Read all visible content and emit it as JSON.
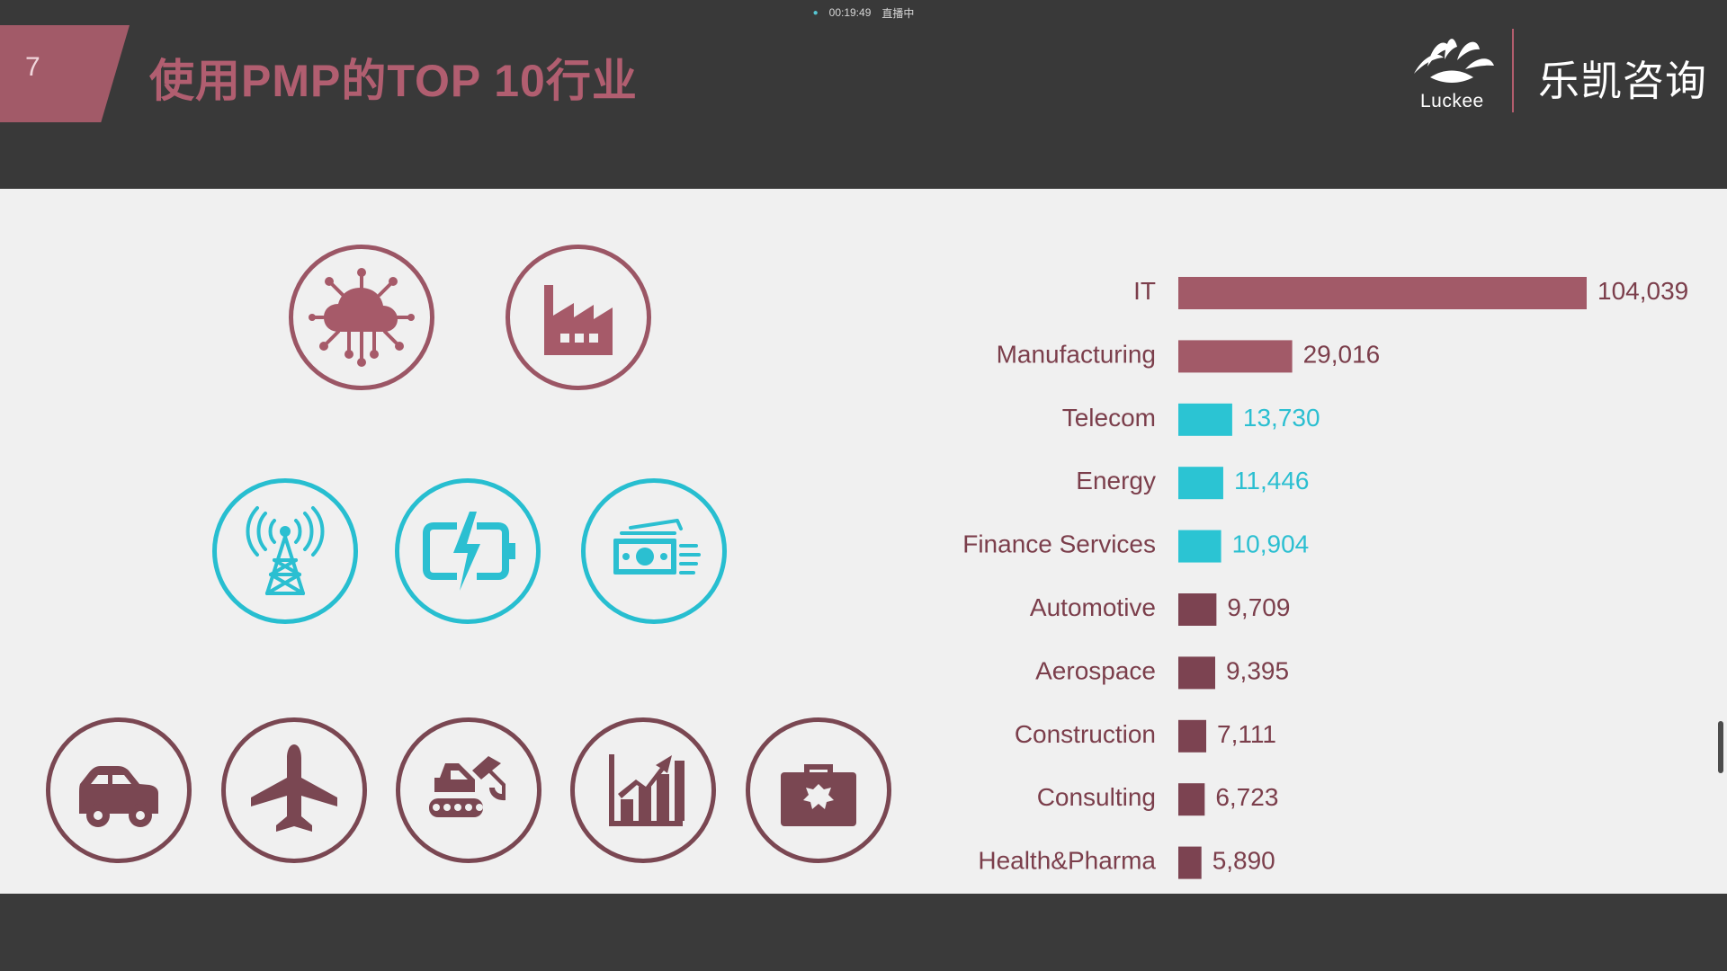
{
  "top_status": {
    "time": "00:19:49",
    "status": "直播中"
  },
  "slide": {
    "number": "7",
    "title": "使用PMP的TOP 10行业"
  },
  "brand": {
    "name": "乐凯咨询",
    "sub": "Luckee"
  },
  "colors": {
    "accent_rose": "#a65a69",
    "accent_cyan": "#2bbfd1",
    "dark_rose": "#7a4752",
    "bar_rose": "#a25a68",
    "bar_cyan": "#2bc4d3",
    "bar_dark": "#7c4351"
  },
  "icons": {
    "row1": [
      "cloud-network-icon",
      "factory-icon"
    ],
    "row2": [
      "radio-tower-icon",
      "battery-charging-icon",
      "money-icon"
    ],
    "row3": [
      "car-icon",
      "airplane-icon",
      "excavator-icon",
      "growth-chart-icon",
      "medical-kit-icon"
    ]
  },
  "chart_data": {
    "type": "bar",
    "orientation": "horizontal",
    "categories": [
      "IT",
      "Manufacturing",
      "Telecom",
      "Energy",
      "Finance Services",
      "Automotive",
      "Aerospace",
      "Construction",
      "Consulting",
      "Health&Pharma"
    ],
    "values": [
      104039,
      29016,
      13730,
      11446,
      10904,
      9709,
      9395,
      7111,
      6723,
      5890
    ],
    "value_labels": [
      "104,039",
      "29,016",
      "13,730",
      "11,446",
      "10,904",
      "9,709",
      "9,395",
      "7,111",
      "6,723",
      "5,890"
    ],
    "colors": [
      "#a25a68",
      "#a25a68",
      "#2bc4d3",
      "#2bc4d3",
      "#2bc4d3",
      "#7c4351",
      "#7c4351",
      "#7c4351",
      "#7c4351",
      "#7c4351"
    ],
    "xlim": [
      0,
      104039
    ]
  }
}
